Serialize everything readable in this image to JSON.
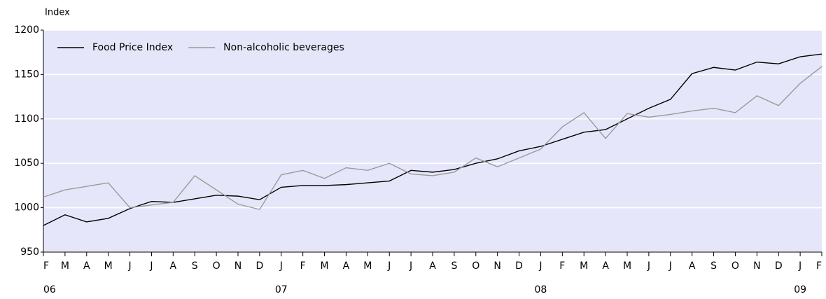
{
  "chart_data": {
    "type": "line",
    "y_label": "Index",
    "categories": [
      "F",
      "M",
      "A",
      "M",
      "J",
      "J",
      "A",
      "S",
      "O",
      "N",
      "D",
      "J",
      "F",
      "M",
      "A",
      "M",
      "J",
      "J",
      "A",
      "S",
      "O",
      "N",
      "D",
      "J",
      "F",
      "M",
      "A",
      "M",
      "J",
      "J",
      "A",
      "S",
      "O",
      "N",
      "D",
      "J",
      "F"
    ],
    "years": [
      "06",
      null,
      null,
      null,
      null,
      null,
      null,
      null,
      null,
      null,
      null,
      "07",
      null,
      null,
      null,
      null,
      null,
      null,
      null,
      null,
      null,
      null,
      null,
      "08",
      null,
      null,
      null,
      null,
      null,
      null,
      null,
      null,
      null,
      null,
      null,
      "09",
      null
    ],
    "series": [
      {
        "name": "Food Price Index",
        "color": "#000000",
        "values": [
          980,
          992,
          984,
          988,
          999,
          1007,
          1006,
          1010,
          1014,
          1013,
          1009,
          1023,
          1025,
          1025,
          1026,
          1028,
          1030,
          1042,
          1040,
          1043,
          1050,
          1055,
          1064,
          1069,
          1077,
          1085,
          1088,
          1100,
          1112,
          1122,
          1151,
          1158,
          1155,
          1164,
          1162,
          1170,
          1173
        ]
      },
      {
        "name": "Non-alcoholic beverages",
        "color": "#9a9a9a",
        "values": [
          1012,
          1020,
          1024,
          1028,
          1000,
          1003,
          1006,
          1036,
          1020,
          1004,
          998,
          1037,
          1042,
          1033,
          1045,
          1042,
          1050,
          1038,
          1036,
          1040,
          1056,
          1046,
          1056,
          1066,
          1091,
          1107,
          1078,
          1106,
          1102,
          1105,
          1109,
          1112,
          1107,
          1126,
          1115,
          1140,
          1159
        ]
      }
    ],
    "ylim": [
      950,
      1200
    ],
    "yticks": [
      950,
      1000,
      1050,
      1100,
      1150,
      1200
    ],
    "grid": true,
    "background": "#e6e6fa",
    "legend": "top-left"
  }
}
